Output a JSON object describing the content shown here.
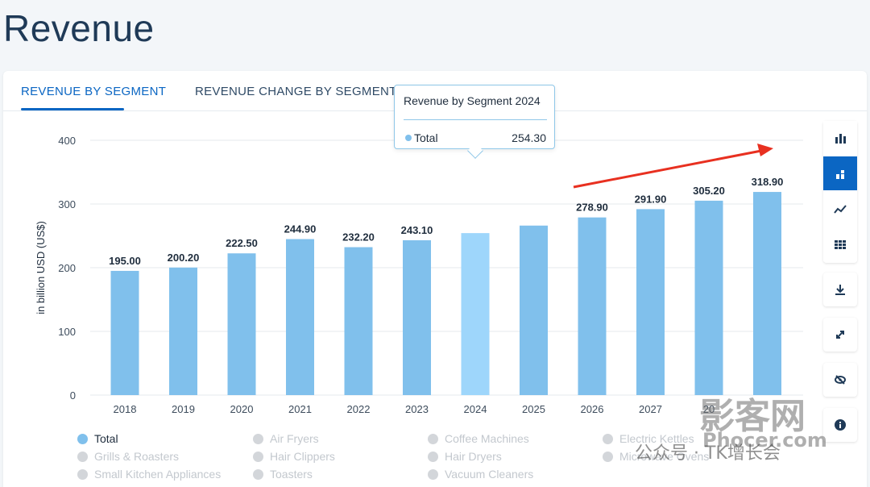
{
  "page": {
    "title": "Revenue"
  },
  "tabs": [
    {
      "label": "REVENUE BY SEGMENT",
      "active": true
    },
    {
      "label": "REVENUE CHANGE BY SEGMENT",
      "active": false
    }
  ],
  "chart_data": {
    "type": "bar",
    "ylabel": "in billion USD (US$)",
    "ylim": [
      0,
      400
    ],
    "yticks": [
      0,
      100,
      200,
      300,
      400
    ],
    "categories": [
      "2018",
      "2019",
      "2020",
      "2021",
      "2022",
      "2023",
      "2024",
      "2025",
      "2026",
      "2027",
      "2028",
      "2029"
    ],
    "series": [
      {
        "name": "Total",
        "values": [
          195.0,
          200.2,
          222.5,
          244.9,
          232.2,
          243.1,
          254.3,
          266.1,
          278.9,
          291.9,
          305.2,
          318.9
        ]
      }
    ],
    "data_labels": [
      "195.00",
      "200.20",
      "222.50",
      "244.90",
      "232.20",
      "243.10",
      null,
      null,
      "278.90",
      "291.90",
      "305.20",
      "318.90"
    ],
    "tick_labels": [
      "2018",
      "2019",
      "2020",
      "2021",
      "2022",
      "2023",
      "2024",
      "2025",
      "2026",
      "2027",
      "20",
      null
    ],
    "highlighted_category": "2024",
    "grid": true,
    "colors": {
      "bar": "#80c0ec",
      "bar_highlight": "#9ed6fb",
      "trend_arrow": "#e83020"
    }
  },
  "tooltip": {
    "title": "Revenue by Segment 2024",
    "series": "Total",
    "value": "254.30"
  },
  "legend": {
    "items": [
      {
        "label": "Total",
        "active": true
      },
      {
        "label": "Air Fryers",
        "active": false
      },
      {
        "label": "Coffee Machines",
        "active": false
      },
      {
        "label": "Electric Kettles",
        "active": false
      },
      {
        "label": "Grills & Roasters",
        "active": false
      },
      {
        "label": "Hair Clippers",
        "active": false
      },
      {
        "label": "Hair Dryers",
        "active": false
      },
      {
        "label": "Microwave Ovens",
        "active": false
      },
      {
        "label": "Small Kitchen Appliances",
        "active": false
      },
      {
        "label": "Toasters",
        "active": false
      },
      {
        "label": "Vacuum Cleaners",
        "active": false
      }
    ],
    "colors": {
      "active": "#80c0ec",
      "inactive": "#d3d6da"
    }
  },
  "toolbar": {
    "buttons": [
      {
        "icon": "bar-chart-icon",
        "active": false
      },
      {
        "icon": "stacked-bar-icon",
        "active": true
      },
      {
        "icon": "line-chart-icon",
        "active": false
      },
      {
        "icon": "table-icon",
        "active": false
      },
      {
        "icon": "download-icon",
        "active": false
      },
      {
        "icon": "expand-icon",
        "active": false
      },
      {
        "icon": "hide-icon",
        "active": false
      },
      {
        "icon": "info-icon",
        "active": false
      }
    ]
  },
  "watermark": {
    "brand": "影客网",
    "site": "Phocer.com",
    "account": "公众号 · TK增长会"
  }
}
